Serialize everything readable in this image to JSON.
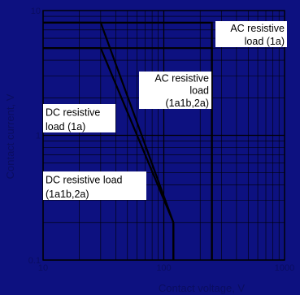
{
  "chart_data": {
    "type": "line",
    "xlabel": "Contact voltage, V",
    "ylabel": "Contact current, V",
    "xscale": "log",
    "yscale": "log",
    "xlim": [
      10,
      1000
    ],
    "ylim": [
      0.1,
      10
    ],
    "grid": true,
    "x_ticks": [
      "10",
      "100",
      "1000"
    ],
    "y_ticks": [
      "0.1",
      "1",
      "10"
    ],
    "series": [
      {
        "values": [
          [
            10,
            8
          ],
          [
            250,
            8
          ],
          [
            250,
            0.1
          ]
        ]
      },
      {
        "values": [
          [
            10,
            5
          ],
          [
            250,
            5
          ],
          [
            250,
            0.1
          ]
        ]
      },
      {
        "values": [
          [
            10,
            8
          ],
          [
            30,
            8
          ],
          [
            120,
            0.2
          ],
          [
            120,
            0.1
          ]
        ]
      },
      {
        "values": [
          [
            10,
            5
          ],
          [
            30,
            5
          ],
          [
            120,
            0.2
          ],
          [
            120,
            0.1
          ]
        ]
      }
    ],
    "annotations": [
      {
        "lines": [
          "AC resistive",
          "load (1a)"
        ]
      },
      {
        "lines": [
          "AC resistive",
          "load",
          "(1a1b,2a)"
        ]
      },
      {
        "lines": [
          "DC resistive",
          "load (1a)"
        ]
      },
      {
        "lines": [
          "DC resistive load",
          "(1a1b,2a)"
        ]
      }
    ],
    "colors": {
      "background": "#0d1180",
      "grid": "#000000",
      "curve": "#000000",
      "label_box": "#ffffff",
      "tick_text": "#0a0d60"
    }
  }
}
